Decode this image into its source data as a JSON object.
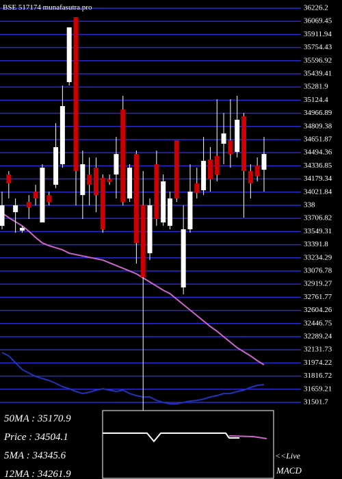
{
  "chart_data": {
    "type": "candlestick",
    "title": "BSE 517174 munafasutra.pro",
    "ylim": [
      31501.7,
      36226.2
    ],
    "yticks": [
      36226.2,
      36069.45,
      35911.94,
      35754.43,
      35596.92,
      35439.41,
      35281.9,
      35124.4,
      34966.89,
      34809.38,
      34651.87,
      34494.36,
      34336.85,
      34179.34,
      34021.84,
      {
        "value": 33864.33,
        "label": "338"
      },
      33706.82,
      33549.31,
      33391.8,
      33234.29,
      33076.78,
      32919.27,
      32761.77,
      32604.26,
      32446.75,
      32289.24,
      32131.73,
      31974.22,
      31816.72,
      31659.21,
      31501.7
    ],
    "grid": true,
    "grid_color": "#2a2ad0",
    "up_color": "#ffffff",
    "down_color": "#cc0000",
    "open": [
      33617.3,
      34232.6,
      33781.4,
      33559.9,
      33904.5,
      34027.5,
      33658.3,
      33986.5,
      34109.6,
      34355.7,
      35340.2,
      36119.5,
      33986.5,
      34232.6,
      34314.7,
      34191.6,
      34175.2,
      34232.6,
      35012.0,
      33945.5,
      34478.7,
      33863.4,
      33289.2,
      34355.7,
      33658.3,
      33617.3,
      34642.8,
      32879.0,
      33576.3,
      34126.0,
      34043.9,
      34413.1,
      34454.1,
      34601.8,
      34642.8,
      34503.4,
      34930.0,
      34273.6,
      34339.3,
      34290.1
    ],
    "high": [
      34027.5,
      34273.6,
      33945.5,
      33617.3,
      33986.5,
      34109.6,
      34355.7,
      34027.5,
      34847.9,
      35299.1,
      35996.5,
      36119.5,
      34519.8,
      34437.7,
      34437.7,
      34232.6,
      34232.6,
      34683.8,
      35176.1,
      34355.7,
      34519.8,
      34273.6,
      33945.5,
      34519.8,
      34232.6,
      34027.5,
      34642.8,
      33863.4,
      34355.7,
      34314.7,
      34683.8,
      34560.8,
      35135.1,
      34971.0,
      35135.1,
      35176.1,
      34971.0,
      34355.7,
      34437.7,
      34683.8
    ],
    "low": [
      33576.3,
      33945.5,
      33535.3,
      33535.3,
      33699.4,
      33863.4,
      33658.3,
      33863.4,
      34068.5,
      34314.7,
      35299.1,
      33863.4,
      33699.4,
      33863.4,
      33781.4,
      33535.3,
      34109.6,
      33945.5,
      33863.4,
      33904.5,
      33166.2,
      31402.3,
      33207.1,
      33617.3,
      33617.3,
      33576.3,
      33904.5,
      32797.0,
      33535.3,
      33945.5,
      33986.5,
      34027.5,
      34150.6,
      34355.7,
      34314.7,
      34437.7,
      33715.8,
      33945.5,
      34150.6,
      34027.5
    ],
    "close": [
      33863.4,
      34126.0,
      33863.4,
      33592.7,
      33838.8,
      33945.5,
      34314.7,
      33904.5,
      34560.8,
      35053.0,
      35996.5,
      34273.6,
      34355.7,
      34109.6,
      33986.5,
      33576.3,
      34142.4,
      34478.7,
      33904.5,
      34314.7,
      33412.2,
      33002.1,
      33863.4,
      33699.4,
      34150.6,
      33945.5,
      33945.5,
      33576.3,
      34027.5,
      34011.1,
      34396.7,
      34175.2,
      34232.6,
      34724.9,
      34478.7,
      34889.0,
      34273.6,
      34126.0,
      34216.2,
      34478.7
    ],
    "series": [
      {
        "color": "#cc66cc",
        "values": [
          33773.2,
          33715.8,
          33666.6,
          33617.3,
          33551.7,
          33477.9,
          33412.2,
          33379.4,
          33354.8,
          33330.2,
          33289.2,
          33272.8,
          33256.4,
          33239.9,
          33223.5,
          33207.1,
          33174.3,
          33141.5,
          33108.7,
          33075.9,
          33043.0,
          32993.8,
          32944.6,
          32895.4,
          32846.2,
          32805.1,
          32739.5,
          32673.9,
          32608.2,
          32542.6,
          32477.0,
          32411.3,
          32353.9,
          32288.3,
          32222.6,
          32157.0,
          32107.8,
          32058.6,
          32001.1,
          31951.9
        ]
      },
      {
        "color": "#2233bb",
        "values": [
          32099.6,
          32058.6,
          31976.5,
          31894.5,
          31853.5,
          31812.4,
          31787.8,
          31763.2,
          31730.4,
          31689.4,
          31664.8,
          31632.0,
          31607.3,
          31623.8,
          31648.4,
          31664.8,
          31648.4,
          31632.0,
          31648.4,
          31607.3,
          31582.7,
          31566.3,
          31566.3,
          31525.3,
          31500.7,
          31484.3,
          31484.3,
          31500.7,
          31517.1,
          31525.3,
          31541.7,
          31566.3,
          31582.7,
          31607.3,
          31607.3,
          31632.0,
          31648.4,
          31681.2,
          31705.8,
          31714.0
        ]
      }
    ]
  },
  "info": [
    "50MA : 35170.9",
    "Price  : 34504.1",
    "5MA : 34345.6",
    "12MA : 34261.9"
  ],
  "macd": {
    "live": "<<Live",
    "label": "MACD"
  }
}
